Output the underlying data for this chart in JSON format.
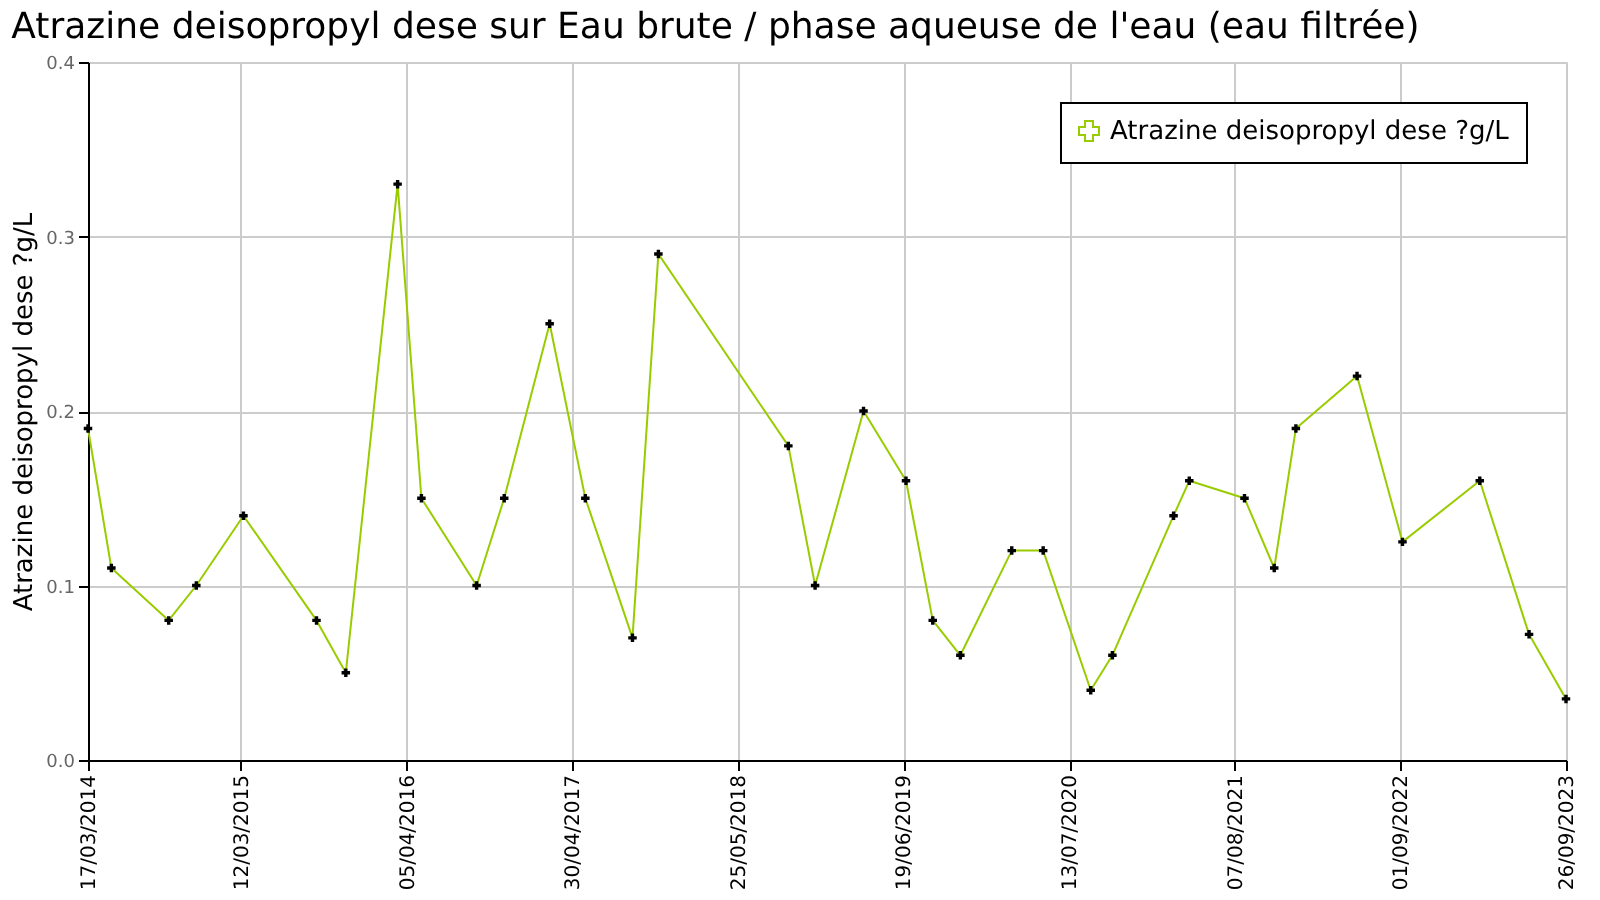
{
  "chart_data": {
    "type": "line",
    "title": "Atrazine deisopropyl dese sur Eau brute / phase aqueuse de l'eau (eau filtrée)",
    "ylabel": "Atrazine deisopropyl dese ?g/L",
    "x": [
      "2014-03-17",
      "2014-05-11",
      "2014-09-23",
      "2014-11-27",
      "2015-03-18",
      "2015-09-06",
      "2015-11-14",
      "2016-03-15",
      "2016-05-10",
      "2016-09-17",
      "2016-11-21",
      "2017-03-08",
      "2017-05-31",
      "2017-09-19",
      "2017-11-19",
      "2018-09-21",
      "2018-11-23",
      "2019-03-17",
      "2019-06-25",
      "2019-08-27",
      "2019-10-31",
      "2020-02-29",
      "2020-05-13",
      "2020-09-02",
      "2020-10-23",
      "2021-03-16",
      "2021-04-22",
      "2021-08-30",
      "2021-11-08",
      "2021-12-29",
      "2022-05-22",
      "2022-09-06",
      "2023-03-07",
      "2023-07-01",
      "2023-09-26"
    ],
    "series": [
      {
        "name": "Atrazine deisopropyl dese ?g/L",
        "color": "#99cc00",
        "values": [
          0.19,
          0.11,
          0.08,
          0.1,
          0.14,
          0.08,
          0.05,
          0.33,
          0.15,
          0.1,
          0.15,
          0.25,
          0.15,
          0.07,
          0.29,
          0.18,
          0.1,
          0.2,
          0.16,
          0.08,
          0.06,
          0.12,
          0.12,
          0.04,
          0.06,
          0.14,
          0.16,
          0.15,
          0.11,
          0.19,
          0.22,
          0.125,
          0.16,
          0.072,
          0.035
        ]
      }
    ],
    "xlim": [
      "2014-03-17",
      "2023-09-26"
    ],
    "xticks": [
      {
        "value": "2014-03-17",
        "label": "17/03/2014"
      },
      {
        "value": "2015-03-12",
        "label": "12/03/2015"
      },
      {
        "value": "2016-04-05",
        "label": "05/04/2016"
      },
      {
        "value": "2017-04-30",
        "label": "30/04/2017"
      },
      {
        "value": "2018-05-25",
        "label": "25/05/2018"
      },
      {
        "value": "2019-06-19",
        "label": "19/06/2019"
      },
      {
        "value": "2020-07-13",
        "label": "13/07/2020"
      },
      {
        "value": "2021-08-07",
        "label": "07/08/2021"
      },
      {
        "value": "2022-09-01",
        "label": "01/09/2022"
      },
      {
        "value": "2023-09-26",
        "label": "26/09/2023"
      }
    ],
    "ylim": [
      0,
      0.4
    ],
    "yticks": [
      {
        "value": 0,
        "label": "0.0"
      },
      0.1,
      0.2,
      0.3,
      {
        "value": 0.4,
        "label": "0.4"
      }
    ],
    "grid": true,
    "legend": "top right",
    "marker": "cross",
    "line_style": "solid"
  }
}
